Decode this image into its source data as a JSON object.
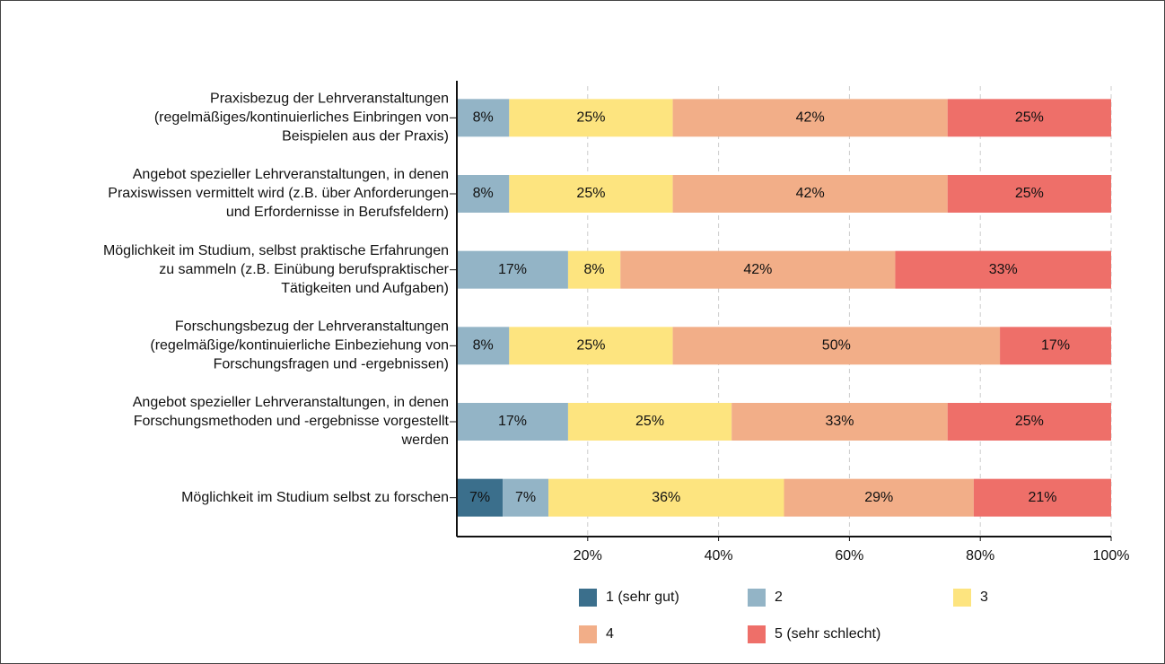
{
  "chart_data": {
    "type": "stacked_bar_horizontal",
    "categories": [
      [
        "Praxisbezug der Lehrveranstaltungen",
        "(regelmäßiges/kontinuierliches Einbringen von",
        "Beispielen aus der Praxis)"
      ],
      [
        "Angebot spezieller Lehrveranstaltungen, in denen",
        "Praxiswissen vermittelt wird (z.B. über Anforderungen",
        "und Erfordernisse in Berufsfeldern)"
      ],
      [
        "Möglichkeit im Studium, selbst praktische Erfahrungen",
        "zu sammeln (z.B. Einübung berufspraktischer",
        "Tätigkeiten und Aufgaben)"
      ],
      [
        "Forschungsbezug der Lehrveranstaltungen",
        "(regelmäßige/kontinuierliche Einbeziehung von",
        "Forschungsfragen und -ergebnissen)"
      ],
      [
        "Angebot spezieller Lehrveranstaltungen, in denen",
        "Forschungsmethoden und ‑ergebnisse vorgestellt",
        "werden"
      ],
      [
        "Möglichkeit im Studium selbst zu forschen"
      ]
    ],
    "series": [
      {
        "name": "1 (sehr gut)",
        "color": "#3b6f8c",
        "values": [
          0,
          0,
          0,
          0,
          0,
          7
        ],
        "value_labels": [
          null,
          null,
          null,
          null,
          null,
          "7%"
        ]
      },
      {
        "name": "2",
        "color": "#93b4c6",
        "values": [
          8,
          8,
          17,
          8,
          17,
          7
        ],
        "value_labels": [
          "8%",
          "8%",
          "17%",
          "8%",
          "17%",
          "7%"
        ]
      },
      {
        "name": "3",
        "color": "#fde47f",
        "values": [
          25,
          25,
          8,
          25,
          25,
          36
        ],
        "value_labels": [
          "25%",
          "25%",
          "8%",
          "25%",
          "25%",
          "36%"
        ]
      },
      {
        "name": "4",
        "color": "#f2ae88",
        "values": [
          42,
          42,
          42,
          50,
          33,
          29
        ],
        "value_labels": [
          "42%",
          "42%",
          "42%",
          "50%",
          "33%",
          "29%"
        ]
      },
      {
        "name": "5 (sehr schlecht)",
        "color": "#ee6f69",
        "values": [
          25,
          25,
          33,
          17,
          25,
          21
        ],
        "value_labels": [
          "25%",
          "25%",
          "33%",
          "17%",
          "25%",
          "21%"
        ]
      }
    ],
    "xlim": [
      0,
      100
    ],
    "xticks": [
      {
        "value": 20,
        "label": "20%"
      },
      {
        "value": 40,
        "label": "40%"
      },
      {
        "value": 60,
        "label": "60%"
      },
      {
        "value": 80,
        "label": "80%"
      },
      {
        "value": 100,
        "label": "100%"
      }
    ],
    "grid": true,
    "legend": "bottom"
  }
}
